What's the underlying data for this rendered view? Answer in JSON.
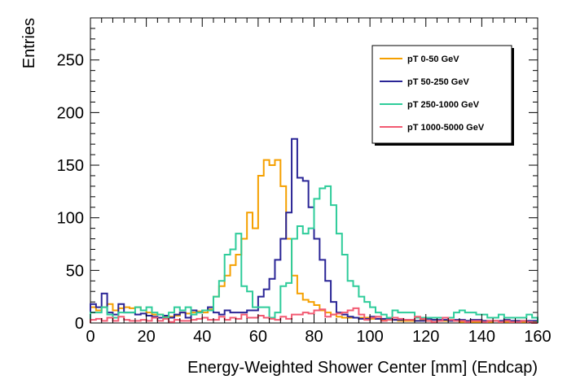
{
  "chart_data": {
    "type": "histogram",
    "title": "",
    "xlabel": "Energy-Weighted Shower Center [mm] (Endcap)",
    "ylabel": "Entries",
    "xlim": [
      0,
      160
    ],
    "ylim": [
      0,
      290
    ],
    "xticks": [
      0,
      20,
      40,
      60,
      80,
      100,
      120,
      140,
      160
    ],
    "yticks": [
      0,
      50,
      100,
      150,
      200,
      250
    ],
    "grid": false,
    "legend_position": "top-right",
    "bin_edges": [
      0,
      160
    ],
    "bin_count": 80,
    "bin_width": 2,
    "series": [
      {
        "name": "pT 0-50 GeV",
        "color": "#f5a000",
        "values": [
          15,
          12,
          15,
          18,
          12,
          14,
          15,
          14,
          15,
          12,
          10,
          8,
          8,
          6,
          6,
          7,
          10,
          9,
          10,
          11,
          10,
          13,
          25,
          35,
          45,
          55,
          65,
          80,
          105,
          90,
          140,
          155,
          150,
          155,
          130,
          80,
          45,
          28,
          22,
          20,
          17,
          12,
          10,
          8,
          6,
          5,
          5,
          5,
          5,
          5,
          4,
          4,
          3,
          3,
          3,
          2,
          2,
          2,
          2,
          3,
          2,
          3,
          2,
          2,
          2,
          2,
          1,
          2,
          1,
          1,
          2,
          1,
          2,
          1,
          1,
          1,
          2,
          1,
          1,
          1
        ]
      },
      {
        "name": "pT 50-250 GeV",
        "color": "#2a2596",
        "values": [
          18,
          15,
          28,
          10,
          8,
          18,
          10,
          10,
          8,
          9,
          7,
          6,
          5,
          7,
          5,
          8,
          10,
          5,
          12,
          10,
          12,
          15,
          10,
          8,
          12,
          10,
          10,
          10,
          12,
          12,
          25,
          32,
          42,
          60,
          80,
          105,
          175,
          138,
          135,
          110,
          80,
          60,
          40,
          20,
          10,
          8,
          6,
          5,
          4,
          4,
          6,
          4,
          4,
          4,
          3,
          3,
          3,
          3,
          2,
          2,
          4,
          3,
          3,
          3,
          2,
          3,
          3,
          2,
          3,
          3,
          2,
          2,
          2,
          2,
          3,
          2,
          2,
          2,
          2,
          2
        ]
      },
      {
        "name": "pT 250-1000 GeV",
        "color": "#2ecc9a",
        "values": [
          10,
          10,
          15,
          8,
          5,
          10,
          10,
          10,
          15,
          12,
          15,
          10,
          8,
          5,
          10,
          15,
          12,
          15,
          8,
          10,
          12,
          12,
          25,
          40,
          65,
          70,
          85,
          35,
          30,
          15,
          15,
          15,
          5,
          10,
          35,
          38,
          80,
          92,
          85,
          90,
          118,
          128,
          130,
          112,
          85,
          65,
          40,
          35,
          25,
          20,
          15,
          10,
          8,
          5,
          12,
          10,
          10,
          10,
          5,
          5,
          5,
          5,
          5,
          5,
          5,
          10,
          12,
          10,
          10,
          8,
          8,
          5,
          5,
          8,
          5,
          5,
          5,
          5,
          8,
          5
        ]
      },
      {
        "name": "pT 1000-5000 GeV",
        "color": "#f25a72",
        "values": [
          3,
          4,
          2,
          5,
          2,
          6,
          3,
          2,
          2,
          3,
          2,
          5,
          2,
          4,
          1,
          3,
          2,
          2,
          3,
          4,
          5,
          3,
          3,
          6,
          3,
          5,
          4,
          8,
          5,
          5,
          7,
          5,
          4,
          3,
          6,
          4,
          8,
          8,
          10,
          9,
          12,
          13,
          6,
          8,
          9,
          10,
          12,
          14,
          8,
          3,
          5,
          6,
          2,
          3,
          5,
          4,
          3,
          3,
          6,
          4,
          2,
          1,
          2,
          5,
          3,
          2,
          2,
          1,
          2,
          2,
          1,
          2,
          2,
          1,
          2,
          1,
          1,
          2,
          1,
          0
        ]
      }
    ]
  }
}
